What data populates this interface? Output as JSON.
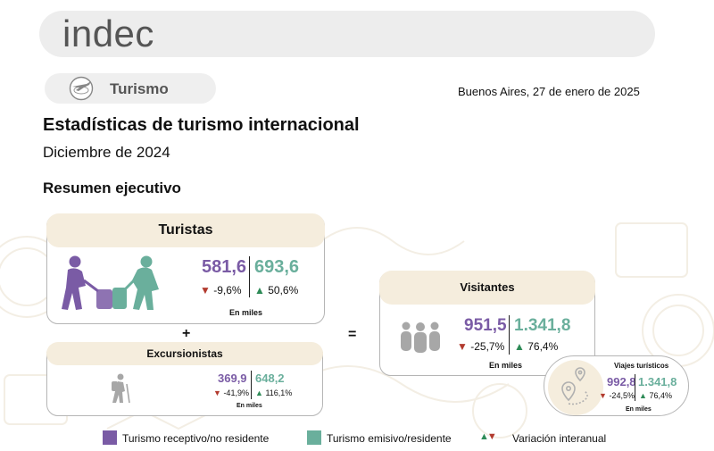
{
  "header": {
    "logo": "indec"
  },
  "section": {
    "label": "Turismo",
    "icon": "plane-globe-icon"
  },
  "date": "Buenos Aires, 27 de enero de 2025",
  "title": "Estadísticas de turismo internacional",
  "subtitle": "Diciembre de 2024",
  "section_heading": "Resumen ejecutivo",
  "colors": {
    "receptivo": "#7a5ba5",
    "emisivo": "#6aaf9c",
    "down": "#b23a2e",
    "up": "#2e8b57",
    "card_header": "#f5eddd"
  },
  "operators": {
    "plus": "+",
    "equals": "="
  },
  "turistas": {
    "title": "Turistas",
    "receptivo_value": "581,6",
    "emisivo_value": "693,6",
    "receptivo_var": "-9,6%",
    "emisivo_var": "50,6%",
    "unit": "En miles",
    "icon": "travelers-luggage-icon"
  },
  "excursionistas": {
    "title": "Excursionistas",
    "receptivo_value": "369,9",
    "emisivo_value": "648,2",
    "receptivo_var": "-41,9%",
    "emisivo_var": "116,1%",
    "unit": "En miles",
    "icon": "hiker-icon"
  },
  "visitantes": {
    "title": "Visitantes",
    "receptivo_value": "951,5",
    "emisivo_value": "1.341,8",
    "receptivo_var": "-25,7%",
    "emisivo_var": "76,4%",
    "unit": "En miles",
    "icon": "group-people-icon"
  },
  "viajes": {
    "title": "Viajes turísticos",
    "receptivo_value": "992,8",
    "emisivo_value": "1.341,8",
    "receptivo_var": "-24,5%",
    "emisivo_var": "76,4%",
    "unit": "En miles",
    "icon": "map-pin-route-icon"
  },
  "legend": {
    "receptivo": "Turismo receptivo/no residente",
    "emisivo": "Turismo emisivo/residente",
    "variacion": "Variación interanual"
  }
}
